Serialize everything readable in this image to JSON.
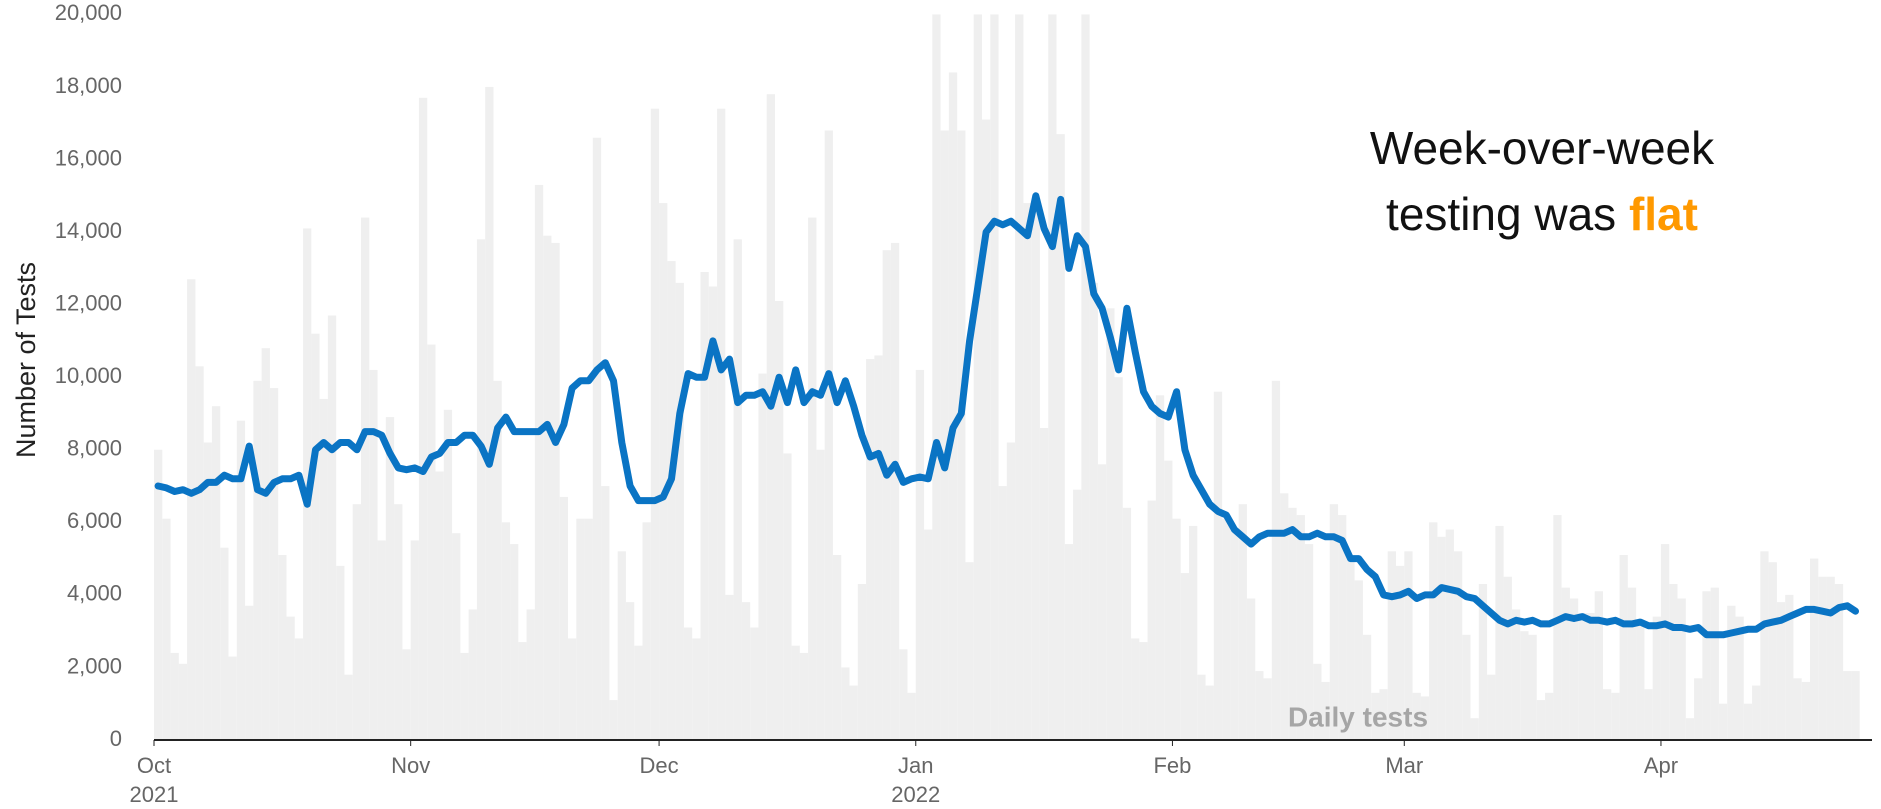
{
  "chart_data": {
    "type": "bar_line",
    "y_axis_title": "Number of Tests",
    "annotation": {
      "line1": "Week-over-week",
      "line2": "testing was",
      "highlight": "flat",
      "highlight_color": "#ff9900"
    },
    "ylim": [
      0,
      20000
    ],
    "yticks": [
      0,
      {
        "value": 2000,
        "label": "2,000"
      },
      {
        "value": 4000,
        "label": "4,000"
      },
      {
        "value": 6000,
        "label": "6,000"
      },
      {
        "value": 8000,
        "label": "8,000"
      },
      {
        "value": 10000,
        "label": "10,000"
      },
      {
        "value": 12000,
        "label": "12,000"
      },
      {
        "value": 14000,
        "label": "14,000"
      },
      {
        "value": 16000,
        "label": "16,000"
      },
      {
        "value": 18000,
        "label": "18,000"
      },
      {
        "value": 20000,
        "label": "20,000"
      }
    ],
    "categories": [
      "Oct\n2021",
      null,
      null,
      null,
      null,
      null,
      null,
      null,
      null,
      null,
      null,
      null,
      null,
      null,
      null,
      null,
      null,
      null,
      null,
      null,
      null,
      null,
      null,
      null,
      null,
      null,
      null,
      null,
      null,
      null,
      null,
      "Nov",
      null,
      null,
      null,
      null,
      null,
      null,
      null,
      null,
      null,
      null,
      null,
      null,
      null,
      null,
      null,
      null,
      null,
      null,
      null,
      null,
      null,
      null,
      null,
      null,
      null,
      null,
      null,
      null,
      null,
      "Dec",
      null,
      null,
      null,
      null,
      null,
      null,
      null,
      null,
      null,
      null,
      null,
      null,
      null,
      null,
      null,
      null,
      null,
      null,
      null,
      null,
      null,
      null,
      null,
      null,
      null,
      null,
      null,
      null,
      null,
      null,
      "Jan\n2022",
      null,
      null,
      null,
      null,
      null,
      null,
      null,
      null,
      null,
      null,
      null,
      null,
      null,
      null,
      null,
      null,
      null,
      null,
      null,
      null,
      null,
      null,
      null,
      null,
      null,
      null,
      null,
      null,
      null,
      null,
      "Feb",
      null,
      null,
      null,
      null,
      null,
      null,
      null,
      null,
      null,
      null,
      null,
      null,
      null,
      null,
      null,
      null,
      null,
      null,
      null,
      null,
      null,
      null,
      null,
      null,
      null,
      null,
      null,
      "Mar",
      null,
      null,
      null,
      null,
      null,
      null,
      null,
      null,
      null,
      null,
      null,
      null,
      null,
      null,
      null,
      null,
      null,
      null,
      null,
      null,
      null,
      null,
      null,
      null,
      null,
      null,
      null,
      null,
      null,
      null,
      "Apr",
      null,
      null,
      null,
      null,
      null,
      null,
      null,
      null,
      null,
      null,
      null,
      null,
      null,
      null,
      null,
      null,
      null,
      null,
      null,
      null,
      null,
      null,
      null
    ],
    "series": [
      {
        "name": "Daily tests",
        "type": "bar",
        "color": "#efefef",
        "label_color": "#a6a6a6",
        "values": [
          8000,
          6100,
          2400,
          2100,
          12700,
          10300,
          8200,
          9200,
          5300,
          2300,
          8800,
          3700,
          9900,
          10800,
          9700,
          5100,
          3400,
          2800,
          14100,
          11200,
          9400,
          11700,
          4800,
          1800,
          6500,
          14400,
          10200,
          5500,
          8900,
          6500,
          2500,
          5500,
          17700,
          10900,
          7400,
          9100,
          5700,
          2400,
          3600,
          13800,
          18000,
          9900,
          6000,
          5400,
          2700,
          3600,
          15300,
          13900,
          13700,
          6700,
          2800,
          6100,
          6100,
          16600,
          7000,
          1100,
          5200,
          3800,
          2600,
          6000,
          17400,
          14800,
          13200,
          12600,
          3100,
          2800,
          12900,
          12500,
          17400,
          4000,
          13800,
          3800,
          3100,
          10100,
          17800,
          12100,
          7900,
          2600,
          2400,
          14400,
          8000,
          16800,
          5100,
          2000,
          1500,
          4300,
          10500,
          10600,
          13500,
          13700,
          2500,
          1300,
          10200,
          5800,
          20000,
          16800,
          18400,
          16800,
          4900,
          20000,
          17100,
          20000,
          7000,
          8200,
          20000,
          14800,
          14700,
          8600,
          20000,
          16700,
          5400,
          6900,
          20000,
          12600,
          7600,
          11900,
          10000,
          6400,
          2800,
          2700,
          6600,
          9500,
          7700,
          6100,
          4600,
          5900,
          1800,
          1500,
          9600,
          6100,
          5800,
          6500,
          3900,
          1900,
          1700,
          9900,
          6800,
          6400,
          6200,
          5400,
          2100,
          1600,
          6500,
          6200,
          5000,
          4400,
          2900,
          1300,
          1400,
          5200,
          4800,
          5200,
          1300,
          1200,
          6000,
          5600,
          5800,
          5200,
          2900,
          600,
          4300,
          1800,
          5900,
          4500,
          3600,
          3000,
          2900,
          1100,
          1300,
          6200,
          4200,
          3900,
          3500,
          3500,
          4100,
          1400,
          1300,
          5100,
          4200,
          3300,
          1400,
          3400,
          5400,
          4300,
          3900,
          600,
          1700,
          4100,
          4200,
          1000,
          3700,
          3400,
          1000,
          1500,
          5200,
          4900,
          3800,
          4000,
          1700,
          1600,
          5000,
          4500,
          4500,
          4300,
          1900,
          1900
        ]
      },
      {
        "type": "line",
        "color": "#0a74c4",
        "values": [
          7000,
          6950,
          6850,
          6900,
          6800,
          6900,
          7100,
          7100,
          7300,
          7200,
          7200,
          8100,
          6900,
          6800,
          7100,
          7200,
          7200,
          7300,
          6500,
          8000,
          8200,
          8000,
          8200,
          8200,
          8000,
          8500,
          8500,
          8400,
          7900,
          7500,
          7450,
          7500,
          7400,
          7800,
          7900,
          8200,
          8200,
          8400,
          8400,
          8100,
          7600,
          8600,
          8900,
          8500,
          8500,
          8500,
          8500,
          8700,
          8200,
          8700,
          9700,
          9900,
          9900,
          10200,
          10400,
          9900,
          8200,
          7000,
          6600,
          6600,
          6600,
          6700,
          7200,
          9000,
          10100,
          10000,
          10000,
          11000,
          10200,
          10500,
          9300,
          9500,
          9500,
          9600,
          9200,
          10000,
          9300,
          10200,
          9300,
          9600,
          9500,
          10100,
          9300,
          9900,
          9200,
          8400,
          7800,
          7900,
          7300,
          7600,
          7100,
          7200,
          7250,
          7200,
          8200,
          7500,
          8600,
          9000,
          11000,
          12500,
          14000,
          14300,
          14200,
          14300,
          14100,
          13900,
          15000,
          14100,
          13600,
          14900,
          13000,
          13900,
          13600,
          12300,
          11900,
          11100,
          10200,
          11900,
          10700,
          9600,
          9200,
          9000,
          8900,
          9600,
          8000,
          7300,
          6900,
          6500,
          6300,
          6200,
          5800,
          5600,
          5400,
          5600,
          5700,
          5700,
          5700,
          5800,
          5600,
          5600,
          5700,
          5600,
          5600,
          5500,
          5000,
          5000,
          4700,
          4500,
          4000,
          3950,
          4000,
          4100,
          3900,
          4000,
          4000,
          4200,
          4150,
          4100,
          3950,
          3900,
          3700,
          3500,
          3300,
          3200,
          3300,
          3250,
          3300,
          3200,
          3200,
          3300,
          3400,
          3350,
          3400,
          3300,
          3300,
          3250,
          3300,
          3200,
          3200,
          3250,
          3150,
          3150,
          3200,
          3100,
          3100,
          3050,
          3100,
          2900,
          2900,
          2900,
          2950,
          3000,
          3050,
          3050,
          3200,
          3250,
          3300,
          3400,
          3500,
          3600,
          3600,
          3550,
          3500,
          3650,
          3700,
          3550
        ]
      }
    ]
  }
}
